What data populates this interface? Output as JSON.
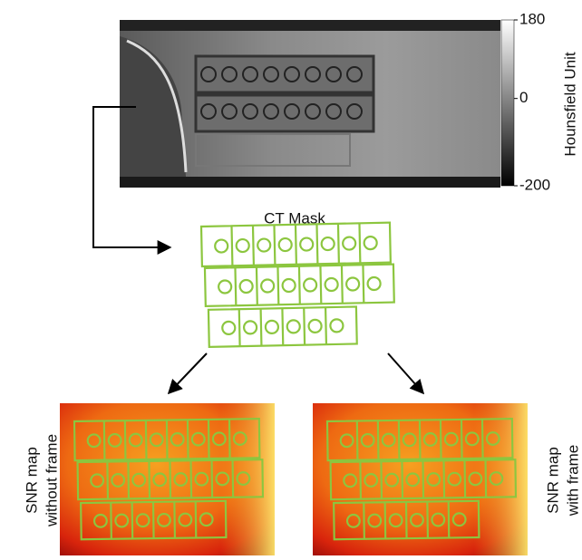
{
  "ct_image": {
    "colorbar": {
      "label": "Hounsfield Unit",
      "lim": [
        -200,
        180
      ],
      "ticks": [
        180,
        0,
        -200
      ]
    }
  },
  "mask": {
    "label": "CT Mask"
  },
  "snr_maps": [
    {
      "label": [
        "SNR map",
        "without frame"
      ]
    },
    {
      "label": [
        "SNR map",
        "with frame"
      ]
    }
  ]
}
